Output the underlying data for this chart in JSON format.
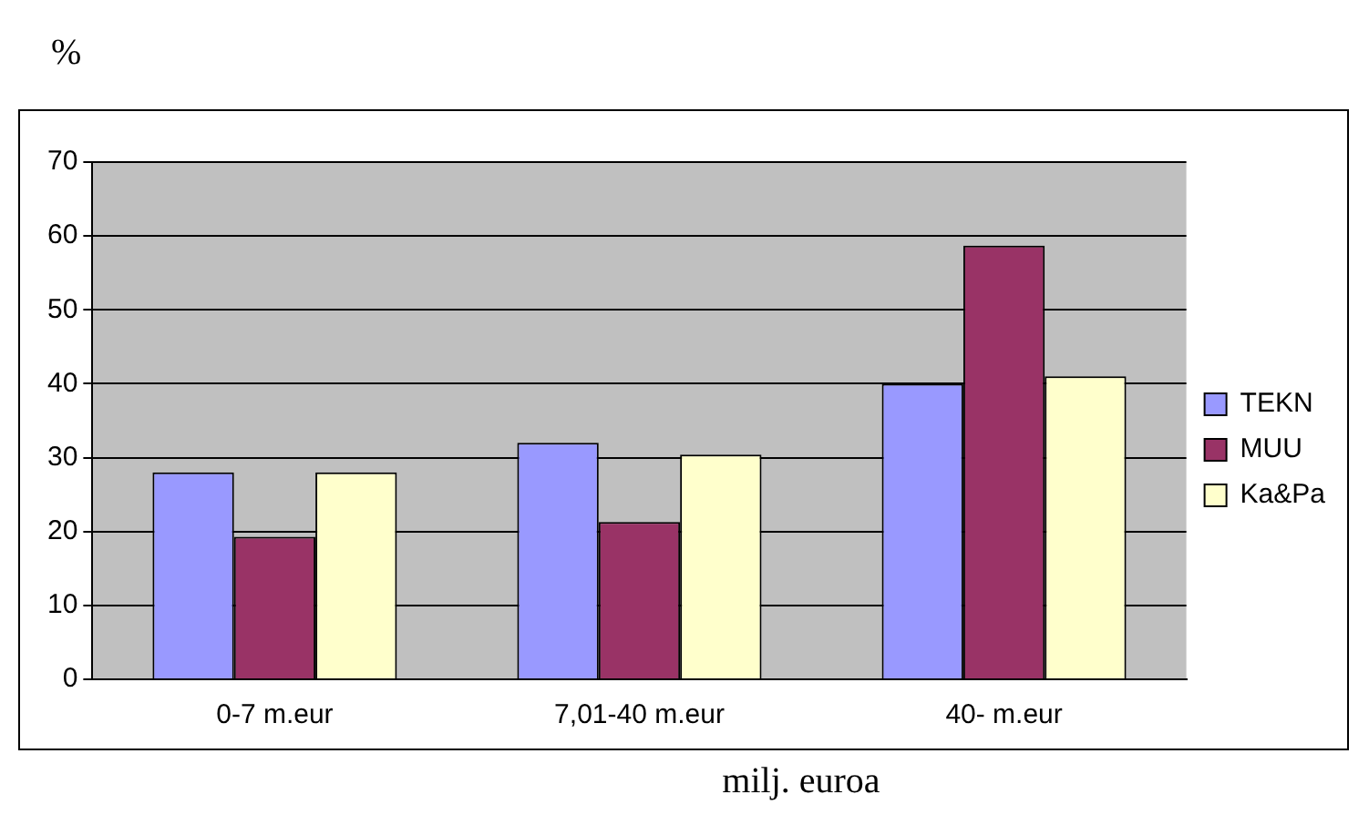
{
  "chart_data": {
    "type": "bar",
    "ylabel": "%",
    "xlabel": "milj. euroa",
    "categories": [
      "0-7 m.eur",
      "7,01-40 m.eur",
      "40- m.eur"
    ],
    "series": [
      {
        "name": "TEKN",
        "color": "#9999ff",
        "values": [
          28,
          32,
          40
        ]
      },
      {
        "name": "MUU",
        "color": "#993366",
        "values": [
          19.3,
          21.3,
          58.7
        ]
      },
      {
        "name": "Ka&Pa",
        "color": "#ffffcc",
        "values": [
          28,
          30.4,
          41
        ]
      }
    ],
    "ylim": [
      0,
      70
    ],
    "yticks": [
      0,
      10,
      20,
      30,
      40,
      50,
      60,
      70
    ],
    "grid": "y",
    "legend": "right"
  }
}
